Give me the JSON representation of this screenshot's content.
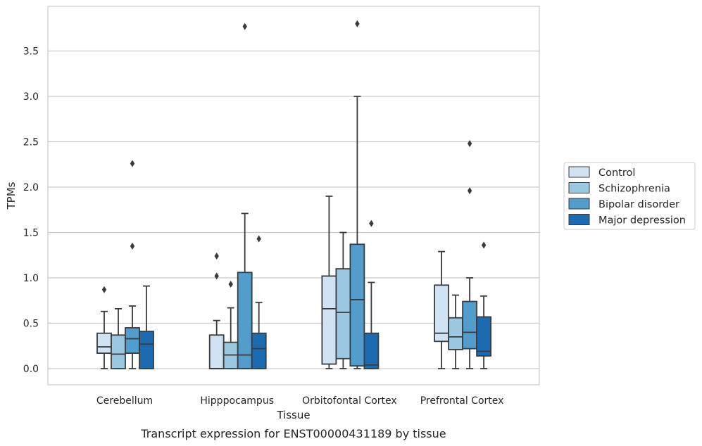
{
  "chart_data": {
    "type": "box",
    "title": "",
    "caption": "Transcript expression for ENST00000431189 by tissue",
    "xlabel": "Tissue",
    "ylabel": "TPMs",
    "ylim": [
      -0.18,
      3.97
    ],
    "yticks": [
      0.0,
      0.5,
      1.0,
      1.5,
      2.0,
      2.5,
      3.0,
      3.5
    ],
    "ytick_labels": [
      "0.0",
      "0.5",
      "1.0",
      "1.5",
      "2.0",
      "2.5",
      "3.0",
      "3.5"
    ],
    "grid": "horizontal",
    "legend_position": "right",
    "categories": [
      "Cerebellum",
      "Hipppocampus",
      "Orbitofontal Cortex",
      "Prefrontal Cortex"
    ],
    "series": [
      {
        "name": "Control",
        "color": "#d1e2f2",
        "boxes": [
          {
            "whisker_low": 0.0,
            "q1": 0.17,
            "median": 0.24,
            "q3": 0.39,
            "whisker_high": 0.63,
            "outliers": [
              0.87
            ]
          },
          {
            "whisker_low": 0.0,
            "q1": 0.0,
            "median": 0.0,
            "q3": 0.37,
            "whisker_high": 0.53,
            "outliers": [
              1.02,
              1.24
            ]
          },
          {
            "whisker_low": 0.0,
            "q1": 0.05,
            "median": 0.66,
            "q3": 1.02,
            "whisker_high": 1.9,
            "outliers": []
          },
          {
            "whisker_low": 0.0,
            "q1": 0.3,
            "median": 0.39,
            "q3": 0.92,
            "whisker_high": 1.29,
            "outliers": []
          }
        ]
      },
      {
        "name": "Schizophrenia",
        "color": "#9ac8e0",
        "boxes": [
          {
            "whisker_low": 0.0,
            "q1": 0.0,
            "median": 0.16,
            "q3": 0.37,
            "whisker_high": 0.66,
            "outliers": []
          },
          {
            "whisker_low": 0.0,
            "q1": 0.0,
            "median": 0.15,
            "q3": 0.29,
            "whisker_high": 0.67,
            "outliers": [
              0.93
            ]
          },
          {
            "whisker_low": 0.0,
            "q1": 0.11,
            "median": 0.62,
            "q3": 1.1,
            "whisker_high": 1.5,
            "outliers": []
          },
          {
            "whisker_low": 0.0,
            "q1": 0.21,
            "median": 0.35,
            "q3": 0.56,
            "whisker_high": 0.81,
            "outliers": []
          }
        ]
      },
      {
        "name": "Bipolar disorder",
        "color": "#529dcc",
        "boxes": [
          {
            "whisker_low": 0.0,
            "q1": 0.17,
            "median": 0.33,
            "q3": 0.45,
            "whisker_high": 0.69,
            "outliers": [
              1.35,
              2.26
            ]
          },
          {
            "whisker_low": 0.0,
            "q1": 0.0,
            "median": 0.15,
            "q3": 1.06,
            "whisker_high": 1.71,
            "outliers": [
              3.77
            ]
          },
          {
            "whisker_low": 0.0,
            "q1": 0.03,
            "median": 0.76,
            "q3": 1.37,
            "whisker_high": 3.0,
            "outliers": [
              3.8
            ]
          },
          {
            "whisker_low": 0.0,
            "q1": 0.22,
            "median": 0.4,
            "q3": 0.74,
            "whisker_high": 1.0,
            "outliers": [
              1.96,
              2.48
            ]
          }
        ]
      },
      {
        "name": "Major depression",
        "color": "#1c6aaf",
        "boxes": [
          {
            "whisker_low": 0.0,
            "q1": 0.0,
            "median": 0.27,
            "q3": 0.41,
            "whisker_high": 0.91,
            "outliers": []
          },
          {
            "whisker_low": 0.0,
            "q1": 0.0,
            "median": 0.22,
            "q3": 0.39,
            "whisker_high": 0.73,
            "outliers": [
              1.43
            ]
          },
          {
            "whisker_low": 0.0,
            "q1": 0.0,
            "median": 0.04,
            "q3": 0.39,
            "whisker_high": 0.95,
            "outliers": [
              1.6
            ]
          },
          {
            "whisker_low": 0.0,
            "q1": 0.14,
            "median": 0.19,
            "q3": 0.57,
            "whisker_high": 0.8,
            "outliers": [
              1.36
            ]
          }
        ]
      }
    ]
  }
}
